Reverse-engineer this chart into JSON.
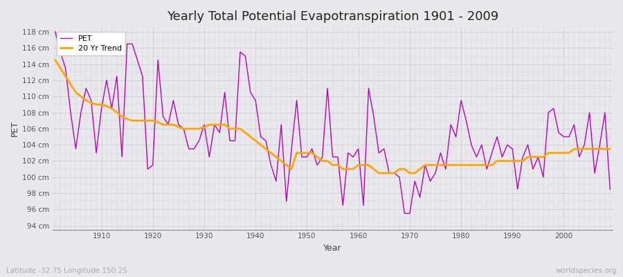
{
  "title": "Yearly Total Potential Evapotranspiration 1901 - 2009",
  "xlabel": "Year",
  "ylabel": "PET",
  "subtitle": "Latitude -32.75 Longitude 150.25",
  "watermark": "worldspecies.org",
  "pet_color": "#bb00bb",
  "trend_color": "#ffa500",
  "bg_color": "#e8e8ed",
  "grid_color": "#d0d0d8",
  "ylim": [
    93.5,
    118.5
  ],
  "years": [
    1901,
    1902,
    1903,
    1904,
    1905,
    1906,
    1907,
    1908,
    1909,
    1910,
    1911,
    1912,
    1913,
    1914,
    1915,
    1916,
    1917,
    1918,
    1919,
    1920,
    1921,
    1922,
    1923,
    1924,
    1925,
    1926,
    1927,
    1928,
    1929,
    1930,
    1931,
    1932,
    1933,
    1934,
    1935,
    1936,
    1937,
    1938,
    1939,
    1940,
    1941,
    1942,
    1943,
    1944,
    1945,
    1946,
    1947,
    1948,
    1949,
    1950,
    1951,
    1952,
    1953,
    1954,
    1955,
    1956,
    1957,
    1958,
    1959,
    1960,
    1961,
    1962,
    1963,
    1964,
    1965,
    1966,
    1967,
    1968,
    1969,
    1970,
    1971,
    1972,
    1973,
    1974,
    1975,
    1976,
    1977,
    1978,
    1979,
    1980,
    1981,
    1982,
    1983,
    1984,
    1985,
    1986,
    1987,
    1988,
    1989,
    1990,
    1991,
    1992,
    1993,
    1994,
    1995,
    1996,
    1997,
    1998,
    1999,
    2000,
    2001,
    2002,
    2003,
    2004,
    2005,
    2006,
    2007,
    2008,
    2009
  ],
  "pet_values": [
    118.0,
    115.5,
    113.5,
    108.0,
    103.5,
    108.0,
    111.0,
    109.5,
    103.0,
    108.5,
    112.0,
    108.5,
    112.5,
    102.5,
    116.5,
    116.5,
    114.5,
    112.5,
    101.0,
    101.5,
    114.5,
    107.5,
    106.5,
    109.5,
    106.5,
    106.0,
    103.5,
    103.5,
    104.5,
    106.5,
    102.5,
    106.5,
    105.5,
    110.5,
    104.5,
    104.5,
    115.5,
    115.0,
    110.5,
    109.5,
    105.0,
    104.5,
    101.5,
    99.5,
    106.5,
    97.0,
    103.5,
    109.5,
    102.5,
    102.5,
    103.5,
    101.5,
    102.5,
    111.0,
    102.5,
    102.5,
    96.5,
    103.0,
    102.5,
    103.5,
    96.5,
    111.0,
    107.5,
    103.0,
    103.5,
    100.5,
    100.5,
    100.0,
    95.5,
    95.5,
    99.5,
    97.5,
    101.5,
    99.5,
    100.5,
    103.0,
    101.0,
    106.5,
    105.0,
    109.5,
    107.0,
    104.0,
    102.5,
    104.0,
    101.0,
    103.0,
    105.0,
    102.5,
    104.0,
    103.5,
    98.5,
    102.5,
    104.0,
    101.0,
    102.5,
    100.0,
    108.0,
    108.5,
    105.5,
    105.0,
    105.0,
    106.5,
    102.5,
    104.0,
    108.0,
    100.5,
    104.0,
    108.0,
    98.5
  ],
  "trend_values": [
    114.5,
    113.5,
    112.5,
    111.5,
    110.5,
    110.0,
    109.5,
    109.2,
    109.0,
    109.0,
    108.8,
    108.5,
    108.0,
    107.5,
    107.2,
    107.0,
    107.0,
    107.0,
    107.0,
    107.0,
    106.8,
    106.5,
    106.5,
    106.5,
    106.2,
    106.0,
    106.0,
    106.0,
    106.0,
    106.2,
    106.5,
    106.5,
    106.5,
    106.5,
    106.0,
    106.0,
    106.0,
    105.5,
    105.0,
    104.5,
    104.0,
    103.5,
    103.0,
    102.5,
    102.0,
    101.5,
    101.0,
    103.0,
    103.0,
    103.0,
    103.0,
    102.5,
    102.0,
    102.0,
    101.5,
    101.5,
    101.0,
    101.0,
    101.0,
    101.5,
    101.5,
    101.5,
    101.0,
    100.5,
    100.5,
    100.5,
    100.5,
    101.0,
    101.0,
    100.5,
    100.5,
    101.0,
    101.5,
    101.5,
    101.5,
    101.5,
    101.5,
    101.5,
    101.5,
    101.5,
    101.5,
    101.5,
    101.5,
    101.5,
    101.5,
    101.5,
    102.0,
    102.0,
    102.0,
    102.0,
    102.0,
    102.0,
    102.5,
    102.5,
    102.5,
    102.5,
    103.0,
    103.0,
    103.0,
    103.0,
    103.0,
    103.5,
    103.5,
    103.5,
    103.5,
    103.5,
    103.5,
    103.5,
    103.5
  ]
}
